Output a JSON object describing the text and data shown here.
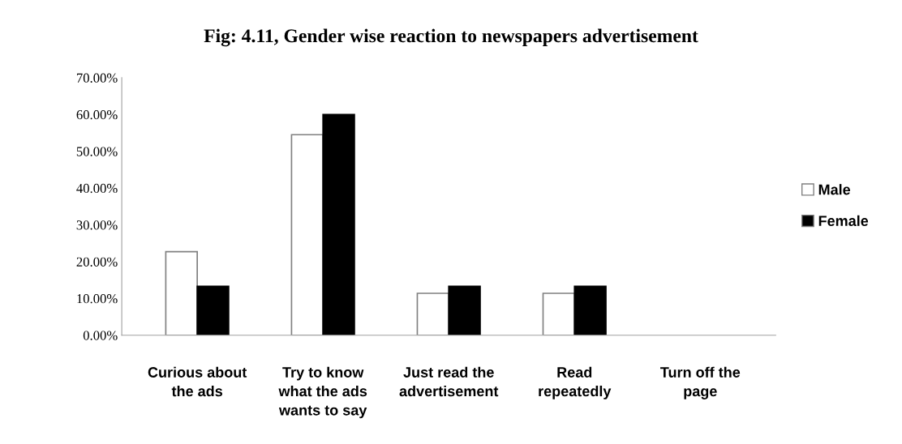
{
  "chart_data": {
    "type": "bar",
    "title": "Fig: 4.11, Gender wise reaction to newspapers advertisement",
    "categories": [
      "Curious about\nthe ads",
      "Try to know\nwhat the ads\nwants to say",
      "Just read the\nadvertisement",
      "Read\nrepeatedly",
      "Turn off the\npage"
    ],
    "series": [
      {
        "name": "Male",
        "color": "#ffffff",
        "values": [
          22.7,
          54.5,
          11.4,
          11.4,
          0
        ]
      },
      {
        "name": "Female",
        "color": "#000000",
        "values": [
          13.3,
          60,
          13.3,
          13.3,
          0
        ]
      }
    ],
    "ylim": [
      0,
      70
    ],
    "yticks": [
      {
        "value": 0,
        "label": "0.00%"
      },
      {
        "value": 10,
        "label": "10.00%"
      },
      {
        "value": 20,
        "label": "20.00%"
      },
      {
        "value": 30,
        "label": "30.00%"
      },
      {
        "value": 40,
        "label": "40.00%"
      },
      {
        "value": 50,
        "label": "50.00%"
      },
      {
        "value": 60,
        "label": "60.00%"
      },
      {
        "value": 70,
        "label": "70.00%"
      }
    ],
    "grid": false,
    "legend": "right"
  }
}
